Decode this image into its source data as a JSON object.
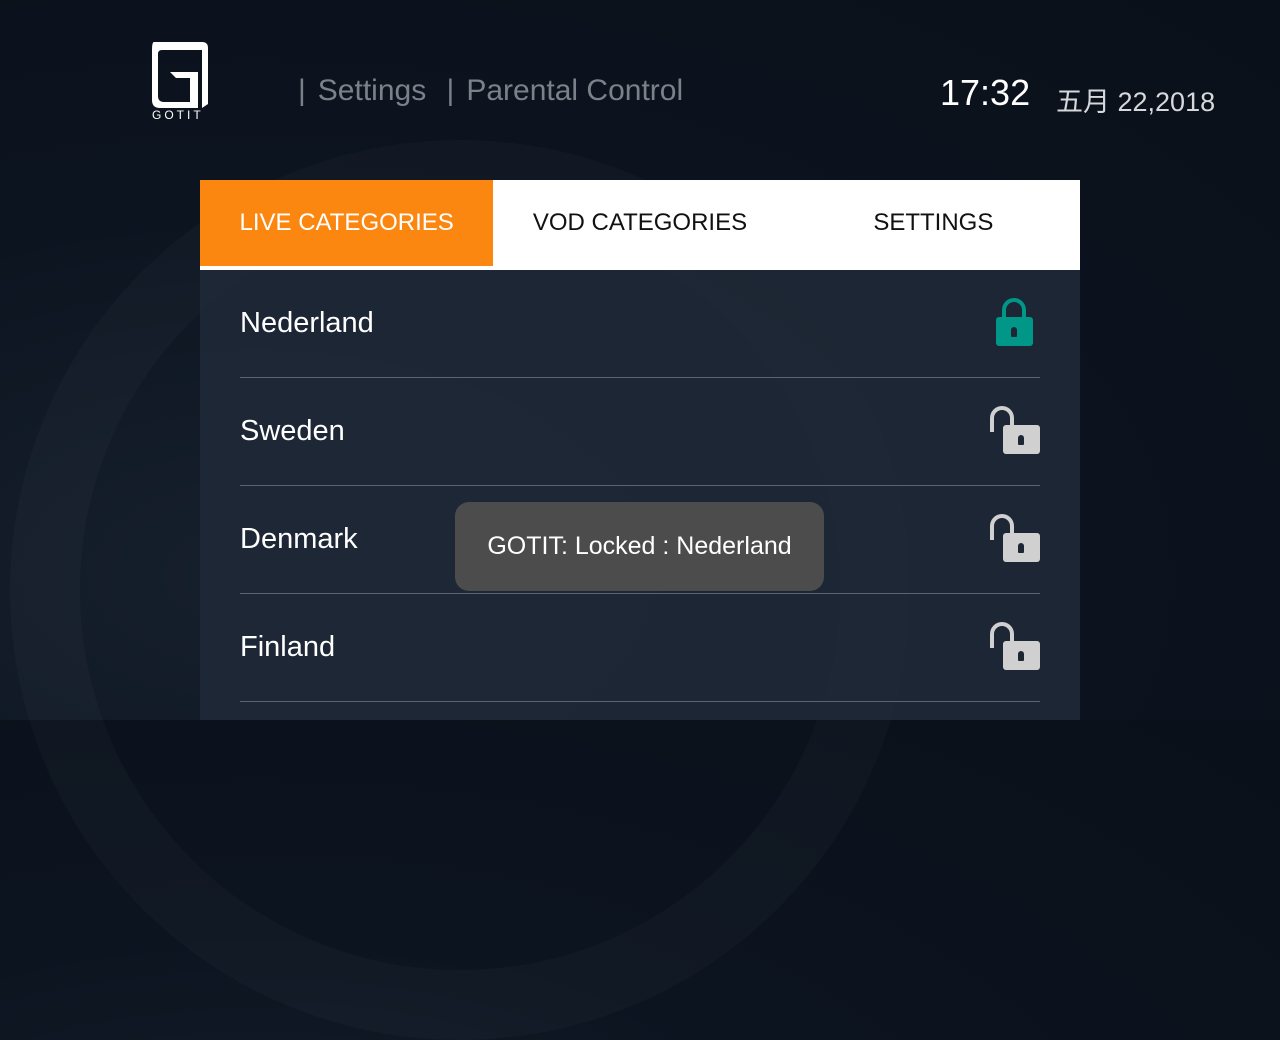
{
  "header": {
    "logo_text": "GOTIT",
    "breadcrumb": [
      "Settings",
      "Parental Control"
    ],
    "time": "17:32",
    "date": "五月 22,2018"
  },
  "tabs": [
    {
      "label": "LIVE CATEGORIES",
      "active": true
    },
    {
      "label": "VOD CATEGORIES",
      "active": false
    },
    {
      "label": "SETTINGS",
      "active": false
    }
  ],
  "categories": [
    {
      "name": "Nederland",
      "locked": true
    },
    {
      "name": "Sweden",
      "locked": false
    },
    {
      "name": "Denmark",
      "locked": false
    },
    {
      "name": "Finland",
      "locked": false
    }
  ],
  "toast": {
    "message": "GOTIT: Locked : Nederland"
  },
  "colors": {
    "accent": "#fb8711",
    "locked": "#009688",
    "unlocked": "#d0d0d0"
  },
  "icons": {
    "locked": "lock-closed-icon",
    "unlocked": "lock-open-icon"
  }
}
